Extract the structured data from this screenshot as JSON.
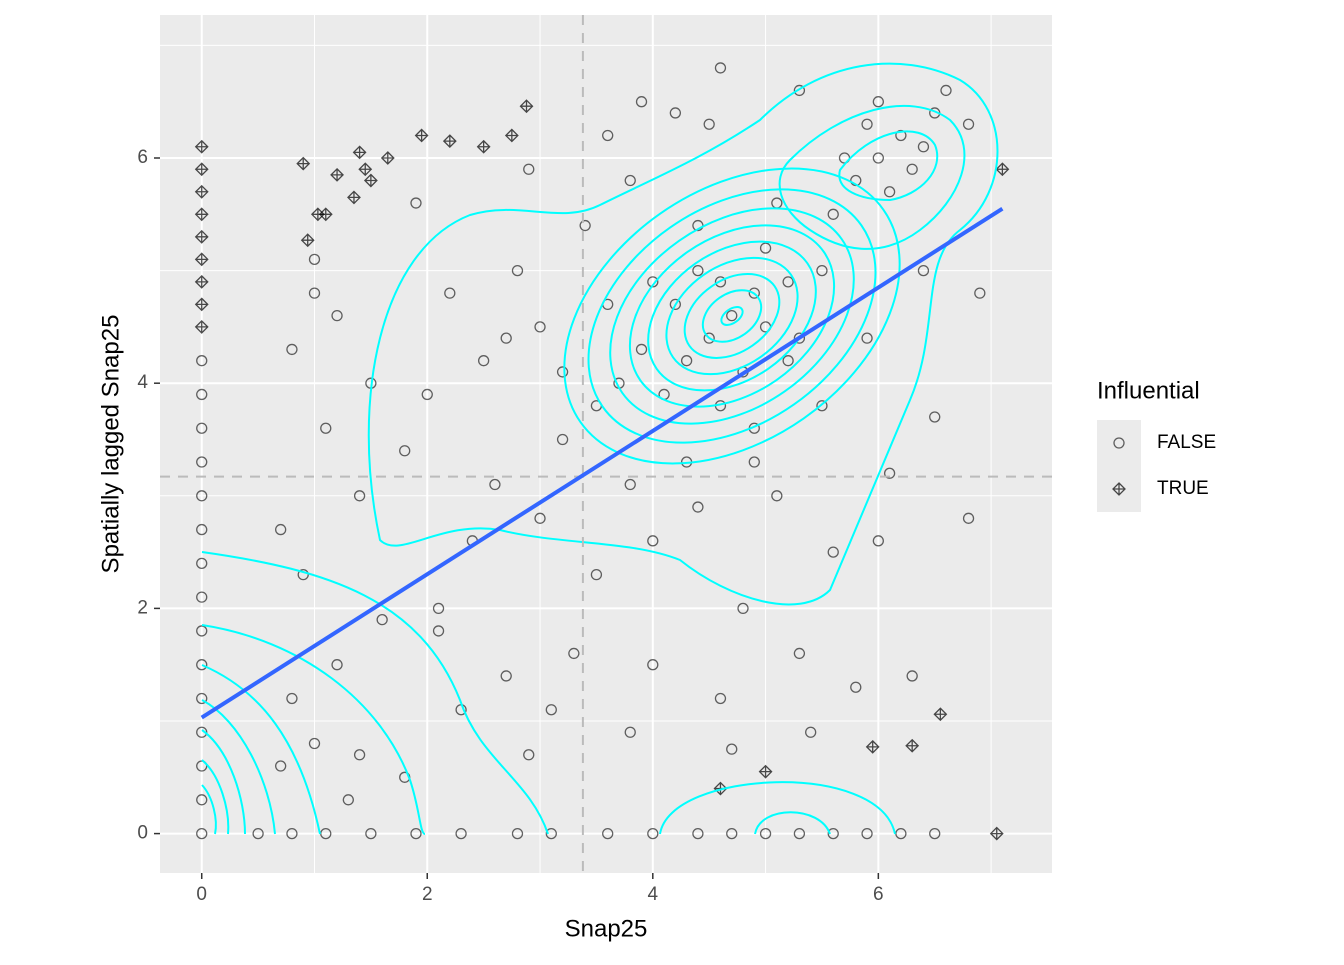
{
  "chart_data": {
    "type": "scatter",
    "x_label": "Snap25",
    "y_label": "Spatially lagged Snap25",
    "xlim": [
      -0.37,
      7.54
    ],
    "ylim": [
      -0.35,
      7.27
    ],
    "xticks": [
      0,
      2,
      4,
      6
    ],
    "yticks": [
      0,
      2,
      4,
      6
    ],
    "x_minor": [
      1,
      3,
      5,
      7
    ],
    "y_minor": [
      1,
      3,
      5,
      7
    ],
    "grid": true,
    "legend": "right",
    "legend_title": "Influential",
    "vline": 3.38,
    "hline": 3.17,
    "trend": {
      "x": [
        0,
        7.1
      ],
      "y": [
        1.03,
        5.55
      ],
      "color": "#3366FF"
    },
    "series": [
      {
        "name": "FALSE",
        "color": "#000000",
        "x": [
          4.7,
          4.5,
          4.9,
          4.3,
          5.0,
          4.6,
          4.2,
          5.2,
          4.8,
          4.4,
          3.9,
          5.3,
          4.1,
          5.0,
          4.6,
          3.7,
          5.5,
          4.0,
          4.9,
          3.5,
          6.0,
          6.2,
          5.8,
          6.4,
          5.9,
          6.1,
          6.5,
          5.6,
          6.3,
          6.6,
          5.7,
          6.8,
          6.0,
          3.0,
          2.5,
          2.0,
          2.8,
          3.2,
          1.8,
          2.2,
          1.5,
          1.2,
          2.6,
          3.4,
          3.8,
          4.5,
          3.6,
          2.9,
          1.9,
          1.0,
          0.8,
          1.4,
          2.4,
          3.0,
          3.5,
          4.0,
          4.4,
          5.1,
          5.6,
          6.0,
          4.8,
          5.3,
          4.0,
          3.3,
          4.6,
          5.8,
          6.3,
          4.7,
          5.4,
          3.8,
          2.9,
          2.1,
          1.6,
          1.2,
          0.8,
          1.0,
          1.4,
          1.8,
          1.3,
          0.7,
          2.3,
          2.7,
          3.1,
          6.5,
          6.1,
          5.9,
          6.4,
          6.9,
          6.8,
          4.6,
          4.2,
          3.9,
          5.3,
          1.0,
          0.7,
          0.9,
          1.1,
          2.1,
          4.3,
          4.9,
          3.8,
          5.5,
          5.2,
          4.4,
          5.1,
          3.2,
          3.6,
          2.7,
          0,
          0.5,
          0.8,
          1.1,
          1.5,
          1.9,
          2.3,
          2.8,
          3.1,
          3.6,
          4.0,
          4.4,
          4.7,
          5.0,
          5.3,
          5.6,
          5.9,
          6.2,
          6.5,
          0,
          0,
          0,
          0,
          0,
          0,
          0,
          0,
          0,
          0,
          0,
          0,
          0,
          0
        ],
        "y": [
          4.6,
          4.4,
          4.8,
          4.2,
          4.5,
          4.9,
          4.7,
          4.9,
          4.1,
          5.0,
          4.3,
          4.4,
          3.9,
          5.2,
          3.8,
          4.0,
          5.0,
          4.9,
          3.6,
          3.8,
          6.0,
          6.2,
          5.8,
          6.1,
          6.3,
          5.7,
          6.4,
          5.5,
          5.9,
          6.6,
          6.0,
          6.3,
          6.5,
          4.5,
          4.2,
          3.9,
          5.0,
          3.5,
          3.4,
          4.8,
          4.0,
          4.6,
          3.1,
          5.4,
          5.8,
          6.3,
          6.2,
          5.9,
          5.6,
          5.1,
          4.3,
          3.0,
          2.6,
          2.8,
          2.3,
          2.6,
          2.9,
          3.0,
          2.5,
          2.6,
          2.0,
          1.6,
          1.5,
          1.6,
          1.2,
          1.3,
          1.4,
          0.75,
          0.9,
          0.9,
          0.7,
          1.8,
          1.9,
          1.5,
          1.2,
          0.8,
          0.7,
          0.5,
          0.3,
          0.6,
          1.1,
          1.4,
          1.1,
          3.7,
          3.2,
          4.4,
          5.0,
          4.8,
          2.8,
          6.8,
          6.4,
          6.5,
          6.6,
          4.8,
          2.7,
          2.3,
          3.6,
          2.0,
          3.3,
          3.3,
          3.1,
          3.8,
          4.2,
          5.4,
          5.6,
          4.1,
          4.7,
          4.4,
          0,
          0,
          0,
          0,
          0,
          0,
          0,
          0,
          0,
          0,
          0,
          0,
          0,
          0,
          0,
          0,
          0,
          0,
          0,
          0.3,
          0.6,
          0.9,
          1.2,
          1.5,
          1.8,
          2.1,
          2.4,
          2.7,
          3.0,
          3.3,
          3.6,
          3.9,
          4.2
        ]
      },
      {
        "name": "TRUE",
        "color": "#000000",
        "x": [
          0,
          0,
          0,
          0,
          0,
          0,
          0,
          0,
          0,
          0.9,
          1.1,
          1.2,
          1.35,
          1.5,
          1.45,
          0.94,
          1.03,
          1.4,
          1.65,
          1.95,
          2.2,
          2.5,
          2.75,
          2.88,
          7.1,
          6.55,
          5.95,
          6.3,
          5.0,
          4.6,
          7.05
        ],
        "y": [
          4.5,
          4.7,
          4.9,
          5.1,
          5.3,
          5.5,
          5.7,
          5.9,
          6.1,
          5.95,
          5.5,
          5.85,
          5.65,
          5.8,
          5.9,
          5.27,
          5.5,
          6.05,
          6.0,
          6.2,
          6.15,
          6.1,
          6.2,
          6.46,
          5.9,
          1.06,
          0.77,
          0.78,
          0.55,
          0.4,
          0
        ]
      }
    ]
  }
}
